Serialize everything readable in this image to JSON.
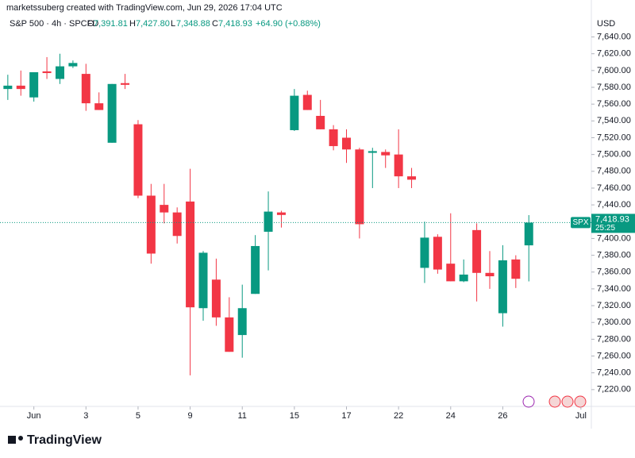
{
  "watermark": "marketssuberg created with TradingView.com, Jun 29, 2026 17:04 UTC",
  "header": {
    "symbol": "S&P 500 · 4h · SPCFD",
    "o_label": "O",
    "o": "7,391.81",
    "h_label": "H",
    "h": "7,427.80",
    "l_label": "L",
    "l": "7,348.88",
    "c_label": "C",
    "c": "7,418.93",
    "change": "+64.90 (+0.88%)"
  },
  "logo": "TradingView",
  "chart_data": {
    "type": "candlestick",
    "currency": "USD",
    "up_color": "#089981",
    "down_color": "#f23645",
    "xlim": [
      -0.6,
      44.8
    ],
    "xticks": [
      {
        "value": 2,
        "label": "Jun"
      },
      {
        "value": 6,
        "label": "3"
      },
      {
        "value": 10,
        "label": "5"
      },
      {
        "value": 14,
        "label": "9"
      },
      {
        "value": 18,
        "label": "11"
      },
      {
        "value": 22,
        "label": "15"
      },
      {
        "value": 26,
        "label": "17"
      },
      {
        "value": 30,
        "label": "22"
      },
      {
        "value": 34,
        "label": "24"
      },
      {
        "value": 38,
        "label": "26"
      },
      {
        "value": 44,
        "label": "Jul"
      }
    ],
    "ylim": [
      7200,
      7684
    ],
    "yticks": [
      {
        "value": 7220,
        "label": "7,220.00"
      },
      {
        "value": 7240,
        "label": "7,240.00"
      },
      {
        "value": 7260,
        "label": "7,260.00"
      },
      {
        "value": 7280,
        "label": "7,280.00"
      },
      {
        "value": 7300,
        "label": "7,300.00"
      },
      {
        "value": 7320,
        "label": "7,320.00"
      },
      {
        "value": 7340,
        "label": "7,340.00"
      },
      {
        "value": 7360,
        "label": "7,360.00"
      },
      {
        "value": 7380,
        "label": "7,380.00"
      },
      {
        "value": 7400,
        "label": "7,400.00"
      },
      {
        "value": 7440,
        "label": "7,440.00"
      },
      {
        "value": 7460,
        "label": "7,460.00"
      },
      {
        "value": 7480,
        "label": "7,480.00"
      },
      {
        "value": 7500,
        "label": "7,500.00"
      },
      {
        "value": 7520,
        "label": "7,520.00"
      },
      {
        "value": 7540,
        "label": "7,540.00"
      },
      {
        "value": 7560,
        "label": "7,560.00"
      },
      {
        "value": 7580,
        "label": "7,580.00"
      },
      {
        "value": 7600,
        "label": "7,600.00"
      },
      {
        "value": 7620,
        "label": "7,620.00"
      },
      {
        "value": 7640,
        "label": "7,640.00"
      }
    ],
    "last_price": {
      "symbol": "SPX",
      "value": 7418.93,
      "label": "7,418.93",
      "countdown": "25:25"
    },
    "open": [
      7578,
      7582,
      7568,
      7599,
      7590,
      7605,
      7596,
      7561,
      7514,
      7585,
      7536,
      7451,
      7440,
      7431,
      7444,
      7317,
      7351,
      7306,
      7285,
      7334,
      7408,
      7431,
      7529,
      7571,
      7546,
      7530,
      7520,
      7506,
      7502,
      7503,
      7500,
      7474,
      7365,
      7402,
      7370,
      7349,
      7410,
      7359,
      7311,
      7375,
      7391.81
    ],
    "high": [
      7595,
      7600,
      7598,
      7616,
      7620,
      7612,
      7608,
      7574,
      7584,
      7596,
      7541,
      7465,
      7465,
      7437,
      7483,
      7385,
      7376,
      7330,
      7345,
      7404,
      7456,
      7433,
      7578,
      7576,
      7565,
      7535,
      7530,
      7508,
      7508,
      7506,
      7530,
      7484,
      7420,
      7405,
      7430,
      7375,
      7418,
      7385,
      7392,
      7380,
      7427.8
    ],
    "low": [
      7565,
      7570,
      7563,
      7590,
      7584,
      7603,
      7552,
      7553,
      7514,
      7578,
      7448,
      7370,
      7418,
      7394,
      7237,
      7302,
      7296,
      7265,
      7258,
      7334,
      7362,
      7413,
      7528,
      7553,
      7530,
      7505,
      7490,
      7400,
      7460,
      7484,
      7460,
      7460,
      7347,
      7358,
      7349,
      7348,
      7325,
      7340,
      7295,
      7341,
      7348.88
    ],
    "close": [
      7582,
      7578,
      7598,
      7597,
      7605,
      7609,
      7561,
      7553,
      7584,
      7583,
      7451,
      7382,
      7431,
      7403,
      7318,
      7383,
      7306,
      7265,
      7317,
      7391,
      7432,
      7428,
      7570,
      7553,
      7530,
      7510,
      7506,
      7417,
      7504,
      7499,
      7474,
      7470,
      7401,
      7363,
      7349,
      7357,
      7359,
      7355,
      7374,
      7352,
      7418.93
    ]
  }
}
